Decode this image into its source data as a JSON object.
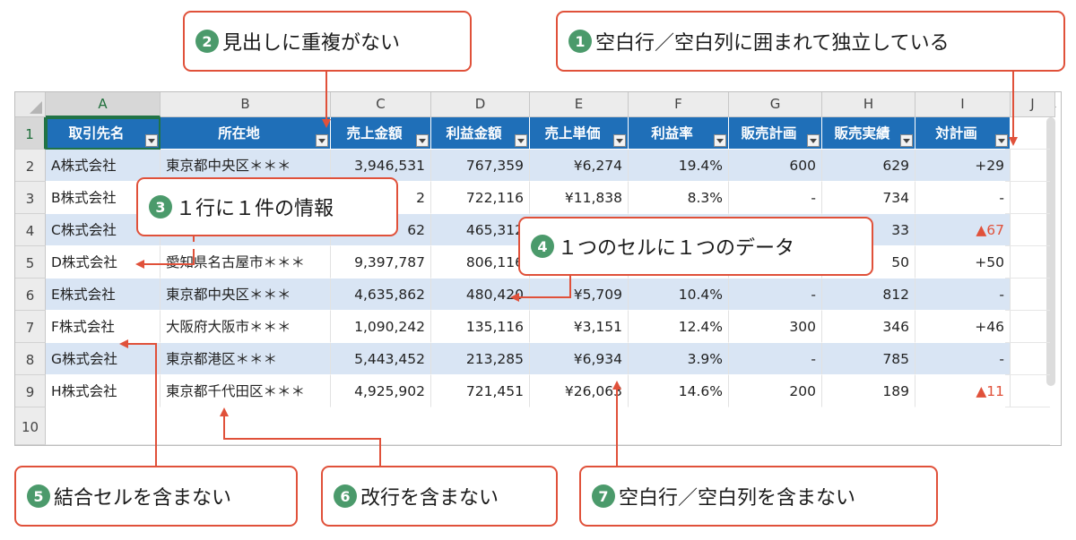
{
  "callouts": [
    {
      "num": "2",
      "text": "見出しに重複がない"
    },
    {
      "num": "1",
      "text": "空白行／空白列に囲まれて独立している"
    },
    {
      "num": "3",
      "text": "１行に１件の情報"
    },
    {
      "num": "4",
      "text": "１つのセルに１つのデータ"
    },
    {
      "num": "5",
      "text": "結合セルを含まない"
    },
    {
      "num": "6",
      "text": "改行を含まない"
    },
    {
      "num": "7",
      "text": "空白行／空白列を含まない"
    }
  ],
  "columns": [
    "A",
    "B",
    "C",
    "D",
    "E",
    "F",
    "G",
    "H",
    "I",
    "J"
  ],
  "row_numbers": [
    "1",
    "2",
    "3",
    "4",
    "5",
    "6",
    "7",
    "8",
    "9",
    "10"
  ],
  "table": {
    "headers": [
      "取引先名",
      "所在地",
      "売上金額",
      "利益金額",
      "売上単価",
      "利益率",
      "販売計画",
      "販売実績",
      "対計画"
    ],
    "rows": [
      [
        "A株式会社",
        "東京都中央区＊＊＊",
        "3,946,531",
        "767,359",
        "¥6,274",
        "19.4%",
        "600",
        "629",
        "+29"
      ],
      [
        "B株式会社",
        "",
        "2",
        "722,116",
        "¥11,838",
        "8.3%",
        "-",
        "734",
        "-"
      ],
      [
        "C株式会社",
        "",
        "62",
        "465,312",
        "",
        "",
        "",
        "33",
        "▲67"
      ],
      [
        "D株式会社",
        "愛知県名古屋市＊＊＊",
        "9,397,787",
        "806,116",
        "",
        "",
        "",
        "50",
        "+50"
      ],
      [
        "E株式会社",
        "東京都中央区＊＊＊",
        "4,635,862",
        "480,420",
        "¥5,709",
        "10.4%",
        "-",
        "812",
        "-"
      ],
      [
        "F株式会社",
        "大阪府大阪市＊＊＊",
        "1,090,242",
        "135,116",
        "¥3,151",
        "12.4%",
        "300",
        "346",
        "+46"
      ],
      [
        "G株式会社",
        "東京都港区＊＊＊",
        "5,443,452",
        "213,285",
        "¥6,934",
        "3.9%",
        "-",
        "785",
        "-"
      ],
      [
        "H株式会社",
        "東京都千代田区＊＊＊",
        "4,925,902",
        "721,451",
        "¥26,063",
        "14.6%",
        "200",
        "189",
        "▲11"
      ]
    ]
  },
  "colors": {
    "accent": "#e0513a",
    "header": "#1f6fb8",
    "band": "#d9e5f4",
    "badge": "#4b9a6b"
  }
}
